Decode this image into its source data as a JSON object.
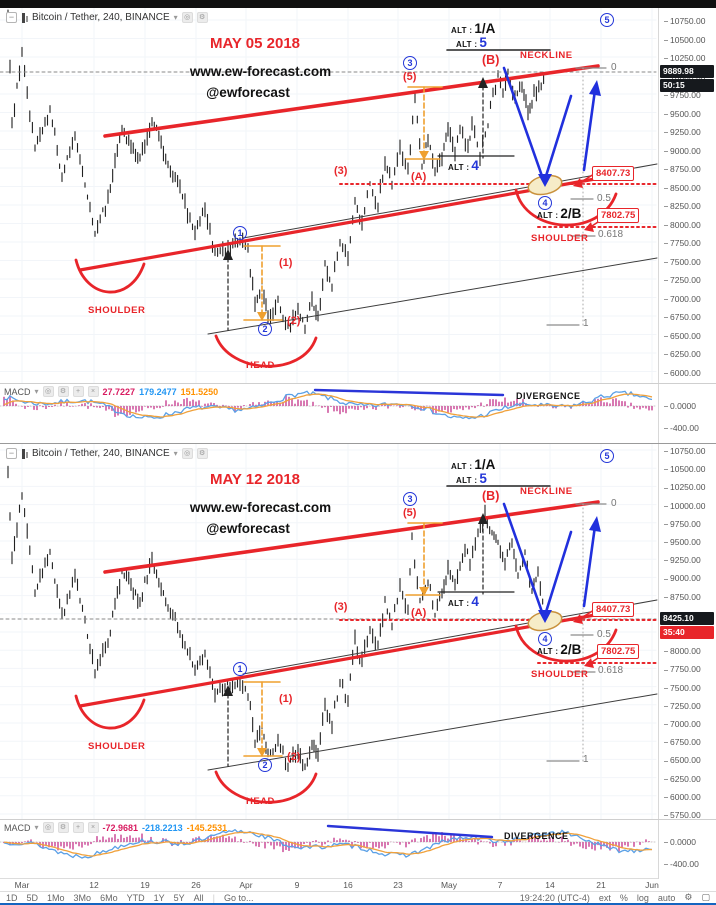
{
  "window": {
    "symbol": "Bitcoin / Tether, 240, BINANCE"
  },
  "shared": {
    "labels": {
      "site": "www.ew-forecast.com",
      "handle": "@ewforecast",
      "neckline": "NECKLINE",
      "shoulder": "SHOULDER",
      "head": "HEAD",
      "divergence": "DIVERGENCE",
      "alt_prefix": "ALT :",
      "alt_1a": "1/A",
      "alt_5": "5",
      "alt_4": "4",
      "alt_2b": "2/B",
      "wave_1": "(1)",
      "wave_2": "(2)",
      "wave_3": "(3)",
      "wave_5": "(5)",
      "wave_a": "(A)",
      "wave_b": "(B)",
      "circ_1": "1",
      "circ_2": "2",
      "circ_3": "3",
      "circ_4": "4",
      "circ_5": "5",
      "fib_0": "0",
      "fib_05": "0.5",
      "fib_0618": "0.618",
      "fib_1": "1",
      "flag_upper": "8407.73",
      "flag_lower": "7802.75",
      "macd_label": "MACD"
    },
    "price_ticks": [
      "10750.00",
      "10500.00",
      "10250.00",
      "10000.00",
      "9750.00",
      "9500.00",
      "9250.00",
      "9000.00",
      "8750.00",
      "8500.00",
      "8250.00",
      "8000.00",
      "7750.00",
      "7500.00",
      "7250.00",
      "7000.00",
      "6750.00",
      "6500.00",
      "6250.00",
      "6000.00",
      "5750.00"
    ],
    "macd_ticks": [
      "0.0000",
      "-400.00"
    ]
  },
  "panel1": {
    "title": "MAY 05 2018",
    "last_price": "9889.98",
    "countdown": "50:15",
    "macd_values": [
      "27.7227",
      "179.2477",
      "151.5250"
    ]
  },
  "panel2": {
    "title": "MAY 12 2018",
    "last_price": "8425.10",
    "countdown": "35:40",
    "macd_values": [
      "-72.9681",
      "-218.2213",
      "-145.2531"
    ]
  },
  "time_axis": {
    "labels": [
      "Mar",
      "12",
      "19",
      "26",
      "Apr",
      "9",
      "16",
      "23",
      "May",
      "7",
      "14",
      "21",
      "Jun"
    ]
  },
  "footer": {
    "ranges": [
      "1D",
      "5D",
      "1Mo",
      "3Mo",
      "6Mo",
      "YTD",
      "1Y",
      "5Y",
      "All"
    ],
    "goto": "Go to...",
    "clock": "19:24:20 (UTC-4)",
    "ext": "ext",
    "percent": "%",
    "log": "log",
    "auto": "auto"
  },
  "icons": {
    "collapse": "−",
    "dropdown": "▾",
    "eye": "◎",
    "gear": "⚙",
    "plus": "+",
    "close": "×",
    "fullscreen": "▢"
  },
  "colors": {
    "accent_red": "#e8252a",
    "wave_blue": "#2437d8",
    "arrow_blue": "#2130dd",
    "measure_orange": "#efa02f",
    "candle": "#212121",
    "macd_hist": "#d161a4",
    "macd_line_fast": "#5aa0e6",
    "macd_line_slow": "#f0a13b",
    "flag_bg": "#16191d",
    "footer_accent": "#1565c0"
  }
}
